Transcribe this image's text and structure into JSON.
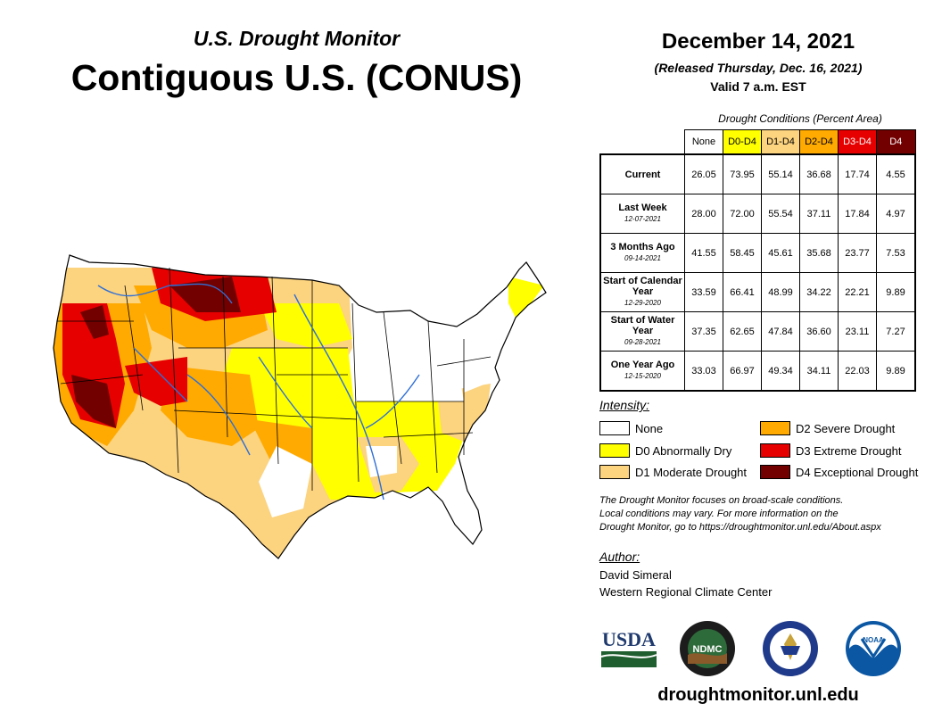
{
  "header": {
    "subtitle": "U.S. Drought Monitor",
    "title": "Contiguous U.S. (CONUS)",
    "date": "December 14, 2021",
    "released": "(Released Thursday, Dec. 16, 2021)",
    "valid": "Valid 7 a.m. EST"
  },
  "table": {
    "caption": "Drought Conditions (Percent Area)",
    "columns": [
      "None",
      "D0-D4",
      "D1-D4",
      "D2-D4",
      "D3-D4",
      "D4"
    ],
    "rows": [
      {
        "label": "Current",
        "date": "",
        "values": [
          "26.05",
          "73.95",
          "55.14",
          "36.68",
          "17.74",
          "4.55"
        ]
      },
      {
        "label": "Last Week",
        "date": "12-07-2021",
        "values": [
          "28.00",
          "72.00",
          "55.54",
          "37.11",
          "17.84",
          "4.97"
        ]
      },
      {
        "label": "3 Months Ago",
        "date": "09-14-2021",
        "values": [
          "41.55",
          "58.45",
          "45.61",
          "35.68",
          "23.77",
          "7.53"
        ]
      },
      {
        "label": "Start of Calendar Year",
        "date": "12-29-2020",
        "values": [
          "33.59",
          "66.41",
          "48.99",
          "34.22",
          "22.21",
          "9.89"
        ]
      },
      {
        "label": "Start of Water Year",
        "date": "09-28-2021",
        "values": [
          "37.35",
          "62.65",
          "47.84",
          "36.60",
          "23.11",
          "7.27"
        ]
      },
      {
        "label": "One Year Ago",
        "date": "12-15-2020",
        "values": [
          "33.03",
          "66.97",
          "49.34",
          "34.11",
          "22.03",
          "9.89"
        ]
      }
    ]
  },
  "intensity": {
    "title": "Intensity:",
    "items": [
      {
        "label": "None",
        "color": "#ffffff"
      },
      {
        "label": "D0 Abnormally Dry",
        "color": "#ffff00"
      },
      {
        "label": "D1 Moderate Drought",
        "color": "#fcd37f"
      },
      {
        "label": "D2 Severe Drought",
        "color": "#ffaa00"
      },
      {
        "label": "D3 Extreme Drought",
        "color": "#e60000"
      },
      {
        "label": "D4 Exceptional Drought",
        "color": "#730000"
      }
    ]
  },
  "note": {
    "line1": "The Drought Monitor focuses on broad-scale conditions.",
    "line2": "Local conditions may vary. For more information on the",
    "line3": "Drought Monitor, go to https://droughtmonitor.unl.edu/About.aspx"
  },
  "author": {
    "title": "Author:",
    "name": "David Simeral",
    "org": "Western Regional Climate Center"
  },
  "logos": {
    "usda": "USDA",
    "ndmc": "NDMC",
    "noaa": "NOAA"
  },
  "site": "droughtmonitor.unl.edu"
}
